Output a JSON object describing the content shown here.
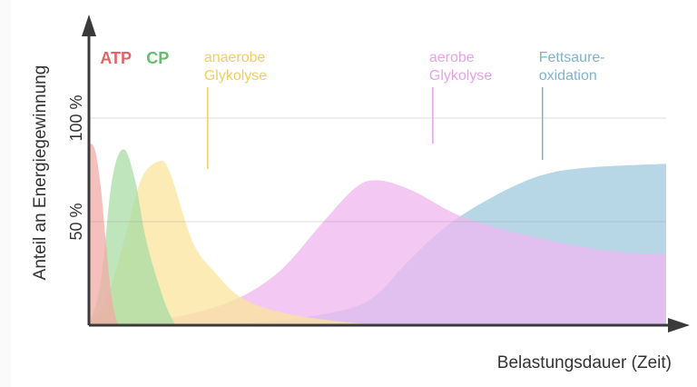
{
  "chart_data": {
    "type": "area",
    "xlabel": "Belastungsdauer (Zeit)",
    "ylabel": "Anteil an Energiegewinnung",
    "yticks": [
      {
        "label": "50 %",
        "value": 50
      },
      {
        "label": "100 %",
        "value": 100
      }
    ],
    "ylim": [
      0,
      100
    ],
    "grid": false,
    "legend": "top",
    "series": [
      {
        "name": "Fettsaure-oxidation",
        "line1": "Fettsaure-",
        "line2": "oxidation",
        "color": "#9fc8de",
        "label_color": "#7fb3d1",
        "label_x": 77,
        "points": [
          [
            0,
            0
          ],
          [
            25,
            1
          ],
          [
            35,
            3
          ],
          [
            45,
            8
          ],
          [
            50,
            15
          ],
          [
            55,
            30
          ],
          [
            62,
            48
          ],
          [
            70,
            62
          ],
          [
            78,
            72
          ],
          [
            86,
            76
          ],
          [
            100,
            78
          ]
        ]
      },
      {
        "name": "aerobe Glykolyse",
        "line1": "aerobe",
        "line2": "Glykolyse",
        "color": "#efb7f0",
        "label_color": "#e7a2ea",
        "label_x": 58,
        "points": [
          [
            0,
            0
          ],
          [
            5,
            1
          ],
          [
            15,
            4
          ],
          [
            25,
            12
          ],
          [
            33,
            26
          ],
          [
            40,
            48
          ],
          [
            46,
            66
          ],
          [
            50,
            70
          ],
          [
            56,
            65
          ],
          [
            65,
            52
          ],
          [
            78,
            42
          ],
          [
            90,
            36
          ],
          [
            100,
            34
          ]
        ]
      },
      {
        "name": "anaerobe Glykolyse",
        "line1": "anaerobe",
        "line2": "Glykolyse",
        "color": "#fbe49c",
        "label_color": "#f2cd63",
        "label_x": 19,
        "points": [
          [
            0,
            0
          ],
          [
            3,
            12
          ],
          [
            6,
            40
          ],
          [
            9,
            70
          ],
          [
            12,
            79
          ],
          [
            14,
            74
          ],
          [
            18,
            40
          ],
          [
            22,
            25
          ],
          [
            26,
            14
          ],
          [
            32,
            7
          ],
          [
            40,
            3
          ],
          [
            50,
            0
          ]
        ]
      },
      {
        "name": "CP",
        "line1": "CP",
        "line2": "",
        "color": "#a8dca6",
        "label_color": "#64be6e",
        "label_x": 9,
        "points": [
          [
            0,
            0
          ],
          [
            2,
            20
          ],
          [
            4,
            70
          ],
          [
            6,
            85
          ],
          [
            8,
            70
          ],
          [
            10,
            40
          ],
          [
            13,
            12
          ],
          [
            15,
            0
          ]
        ]
      },
      {
        "name": "ATP",
        "line1": "ATP",
        "line2": "",
        "color": "#f2a9a6",
        "label_color": "#e06566",
        "label_x": 1,
        "points": [
          [
            0,
            88
          ],
          [
            1,
            85
          ],
          [
            2,
            68
          ],
          [
            3,
            38
          ],
          [
            4,
            12
          ],
          [
            5,
            0
          ]
        ]
      }
    ]
  }
}
